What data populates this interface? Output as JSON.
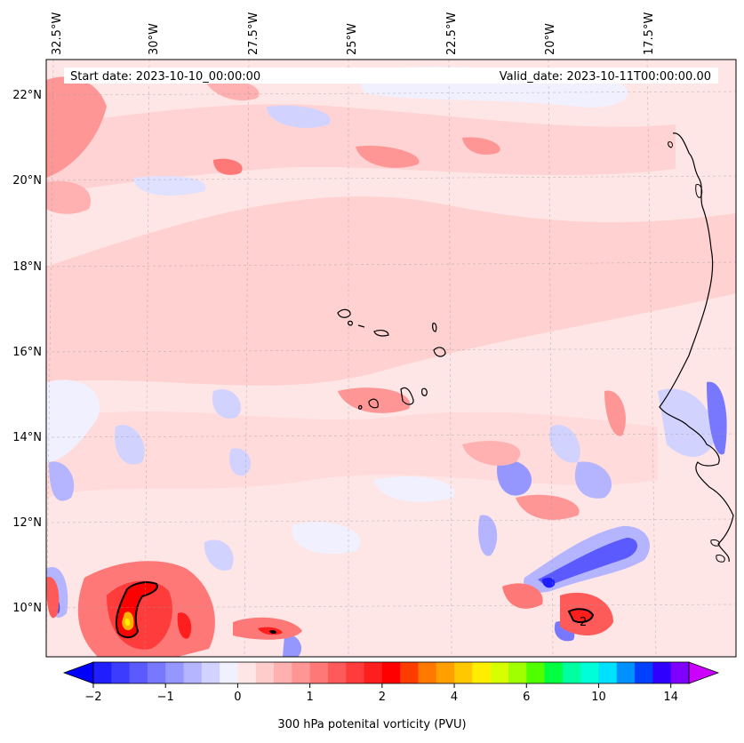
{
  "map": {
    "start_label": "Start date: 2023-10-10_00:00:00",
    "valid_label": "Valid_date: 2023-10-11T00:00:00.00",
    "lon_labels": [
      "32.5°W",
      "30°W",
      "27.5°W",
      "25°W",
      "22.5°W",
      "20°W",
      "17.5°W"
    ],
    "lat_labels": [
      "22°N",
      "20°N",
      "18°N",
      "16°N",
      "14°N",
      "12°N",
      "10°N"
    ],
    "contour_label": "2",
    "colors": {
      "background": "#ffe6e6",
      "coastline": "#000000"
    }
  },
  "colorbar": {
    "title": "300 hPa potenital vorticity (PVU)",
    "ticks": [
      "−2",
      "−1",
      "0",
      "1",
      "2",
      "4",
      "6",
      "10",
      "14"
    ],
    "colors": [
      "#1e1eff",
      "#3c3cff",
      "#5a5aff",
      "#7878ff",
      "#9696ff",
      "#b4b4ff",
      "#d2d2ff",
      "#f0f0ff",
      "#ffe6e6",
      "#ffcccc",
      "#ffb0b0",
      "#ff9696",
      "#ff7878",
      "#ff5a5a",
      "#ff3c3c",
      "#ff1e1e",
      "#ff0000",
      "#ff3c00",
      "#ff7800",
      "#ffa000",
      "#ffc800",
      "#ffee00",
      "#d8ff00",
      "#a0ff00",
      "#50ff00",
      "#00ff40",
      "#00ffa0",
      "#00ffd8",
      "#00e0ff",
      "#0090ff",
      "#0040ff",
      "#3000ff",
      "#8000ff"
    ],
    "low_color": "#0000ff",
    "high_color": "#cc00ff"
  }
}
